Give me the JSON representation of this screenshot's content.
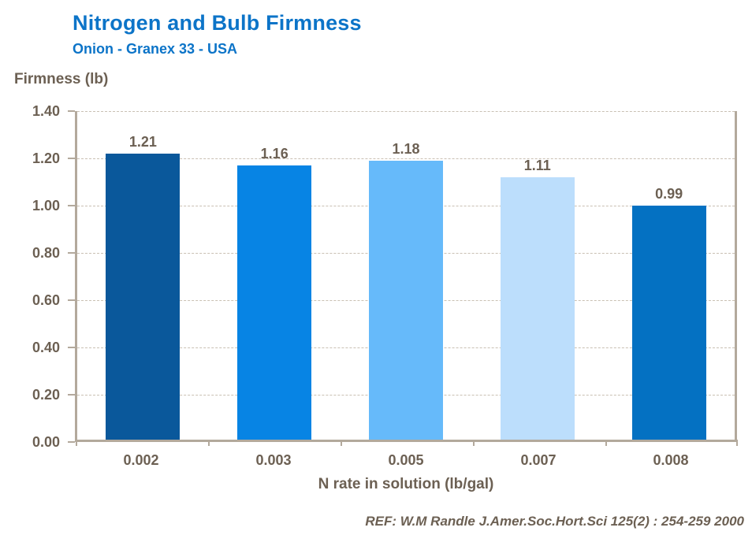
{
  "header": {
    "title": "Nitrogen and Bulb Firmness",
    "subtitle": "Onion - Granex 33 - USA"
  },
  "chart_data": {
    "type": "bar",
    "title": "Nitrogen and Bulb Firmness",
    "subtitle": "Onion - Granex 33 - USA",
    "categories": [
      "0.002",
      "0.003",
      "0.005",
      "0.007",
      "0.008"
    ],
    "values": [
      1.21,
      1.16,
      1.18,
      1.11,
      0.99
    ],
    "value_labels": [
      "1.21",
      "1.16",
      "1.18",
      "1.11",
      "0.99"
    ],
    "bar_colors": [
      "#0A589B",
      "#0784E4",
      "#66BAFA",
      "#BCDEFC",
      "#0471C2"
    ],
    "xlabel": "N rate in solution (lb/gal)",
    "ylabel": "Firmness (lb)",
    "ylim": [
      0,
      1.4
    ],
    "y_ticks": [
      "1.40",
      "1.20",
      "1.00",
      "0.80",
      "0.60",
      "0.40",
      "0.20",
      "0.00"
    ],
    "grid": "horizontal dashed",
    "legend": "none"
  },
  "footer": {
    "reference": "REF: W.M Randle  J.Amer.Soc.Hort.Sci 125(2) : 254-259 2000"
  },
  "colors": {
    "title_blue": "#0C74C8",
    "text_brown": "#6C6053",
    "axis": "#B3A99C",
    "gridline": "#C9C0B3"
  }
}
